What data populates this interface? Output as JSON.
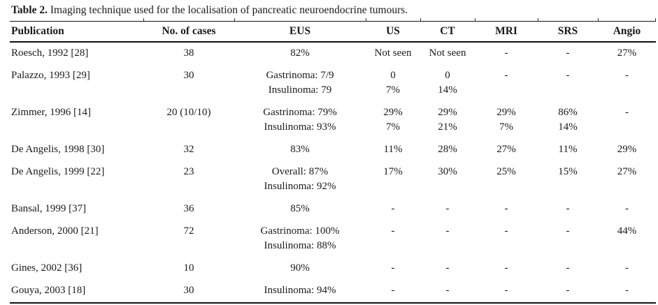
{
  "page": {
    "background": "#ffffff",
    "text_color": "#1a1a1a",
    "rule_color": "#111111"
  },
  "title": {
    "label": "Table 2.",
    "caption": "Imaging technique used for the localisation of pancreatic neuroendocrine tumours."
  },
  "table": {
    "columns": [
      {
        "key": "publication",
        "label": "Publication",
        "align": "left"
      },
      {
        "key": "cases",
        "label": "No. of cases",
        "align": "center"
      },
      {
        "key": "eus",
        "label": "EUS",
        "align": "center"
      },
      {
        "key": "us",
        "label": "US",
        "align": "center"
      },
      {
        "key": "ct",
        "label": "CT",
        "align": "center"
      },
      {
        "key": "mri",
        "label": "MRI",
        "align": "center"
      },
      {
        "key": "srs",
        "label": "SRS",
        "align": "center"
      },
      {
        "key": "angio",
        "label": "Angio",
        "align": "center"
      }
    ],
    "rows": [
      {
        "cells": [
          [
            "Roesch, 1992 [28]"
          ],
          [
            "38"
          ],
          [
            "82%"
          ],
          [
            "Not seen"
          ],
          [
            "Not seen"
          ],
          [
            "-"
          ],
          [
            "-"
          ],
          [
            "27%"
          ]
        ]
      },
      {
        "cells": [
          [
            "Palazzo, 1993 [29]"
          ],
          [
            "30"
          ],
          [
            "Gastrinoma: 7/9",
            "Insulinoma: 79"
          ],
          [
            "0",
            "7%"
          ],
          [
            "0",
            "14%"
          ],
          [
            "-"
          ],
          [
            "-"
          ],
          [
            "-"
          ]
        ]
      },
      {
        "cells": [
          [
            "Zimmer, 1996 [14]"
          ],
          [
            "20 (10/10)"
          ],
          [
            "Gastrinoma: 79%",
            "Insulinoma: 93%"
          ],
          [
            "29%",
            "7%"
          ],
          [
            "29%",
            "21%"
          ],
          [
            "29%",
            "7%"
          ],
          [
            "86%",
            "14%"
          ],
          [
            "-"
          ]
        ]
      },
      {
        "cells": [
          [
            "De Angelis, 1998 [30]"
          ],
          [
            "32"
          ],
          [
            "83%"
          ],
          [
            "11%"
          ],
          [
            "28%"
          ],
          [
            "27%"
          ],
          [
            "11%"
          ],
          [
            "29%"
          ]
        ]
      },
      {
        "cells": [
          [
            "De Angelis, 1999 [22]"
          ],
          [
            "23"
          ],
          [
            "Overall: 87%",
            "Insulinoma: 92%"
          ],
          [
            "17%"
          ],
          [
            "30%"
          ],
          [
            "25%"
          ],
          [
            "15%"
          ],
          [
            "27%"
          ]
        ]
      },
      {
        "cells": [
          [
            "Bansal, 1999 [37]"
          ],
          [
            "36"
          ],
          [
            "85%"
          ],
          [
            "-"
          ],
          [
            "-"
          ],
          [
            "-"
          ],
          [
            "-"
          ],
          [
            "-"
          ]
        ]
      },
      {
        "cells": [
          [
            "Anderson, 2000 [21]"
          ],
          [
            "72"
          ],
          [
            "Gastrinoma: 100%",
            "Insulinoma: 88%"
          ],
          [
            "-"
          ],
          [
            "-"
          ],
          [
            "-"
          ],
          [
            "-"
          ],
          [
            "44%"
          ]
        ]
      },
      {
        "cells": [
          [
            "Gines, 2002 [36]"
          ],
          [
            "10"
          ],
          [
            "90%"
          ],
          [
            "-"
          ],
          [
            "-"
          ],
          [
            "-"
          ],
          [
            "-"
          ],
          [
            "-"
          ]
        ]
      },
      {
        "cells": [
          [
            "Gouya, 2003 [18]"
          ],
          [
            "30"
          ],
          [
            "Insulinoma: 94%"
          ],
          [
            "-"
          ],
          [
            "-"
          ],
          [
            "-"
          ],
          [
            "-"
          ],
          [
            "-"
          ]
        ]
      }
    ]
  }
}
